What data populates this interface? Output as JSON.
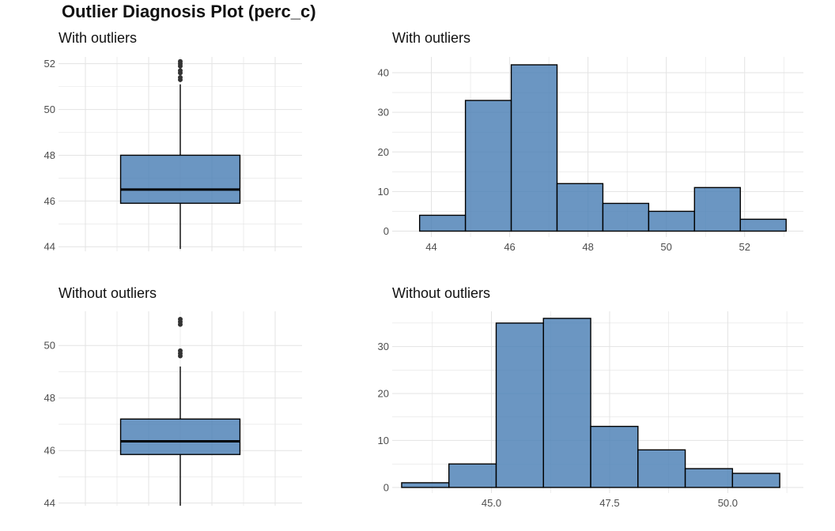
{
  "title": "Outlier Diagnosis Plot (perc_c)",
  "colors": {
    "fill": "#4a7fb5",
    "stroke": "#000000",
    "grid": "#e3e3e3"
  },
  "chart_data": [
    {
      "id": "box-with",
      "type": "box",
      "title": "With outliers",
      "ylim": [
        43.8,
        52.3
      ],
      "y_ticks": [
        44,
        46,
        48,
        50,
        52
      ],
      "y_tick_labels": [
        "44",
        "46",
        "48",
        "50",
        "52"
      ],
      "box": {
        "q1": 45.9,
        "median": 46.5,
        "q3": 48.0,
        "whisker_low": 43.9,
        "whisker_high": 51.1
      },
      "outliers": [
        51.3,
        51.4,
        51.6,
        51.7,
        51.9,
        52.0,
        52.1
      ],
      "grid": true
    },
    {
      "id": "hist-with",
      "type": "bar",
      "title": "With outliers",
      "xlim": [
        43.0,
        53.5
      ],
      "ylim": [
        -1.5,
        44
      ],
      "x_ticks": [
        44,
        46,
        48,
        50,
        52
      ],
      "x_tick_labels": [
        "44",
        "46",
        "48",
        "50",
        "52"
      ],
      "y_ticks": [
        0,
        10,
        20,
        30,
        40
      ],
      "y_tick_labels": [
        "0",
        "10",
        "20",
        "30",
        "40"
      ],
      "bin_edges": [
        43.7,
        44.87,
        46.04,
        47.21,
        48.38,
        49.55,
        50.72,
        51.89,
        53.06
      ],
      "counts": [
        4,
        33,
        42,
        12,
        7,
        5,
        11,
        3
      ],
      "grid": true
    },
    {
      "id": "box-without",
      "type": "box",
      "title": "Without outliers",
      "ylim": [
        43.9,
        51.3
      ],
      "y_ticks": [
        44,
        46,
        48,
        50
      ],
      "y_tick_labels": [
        "44",
        "46",
        "48",
        "50"
      ],
      "box": {
        "q1": 45.85,
        "median": 46.35,
        "q3": 47.2,
        "whisker_low": 43.9,
        "whisker_high": 49.2
      },
      "outliers": [
        49.6,
        49.7,
        49.8,
        50.8,
        50.9,
        51.0
      ],
      "grid": true
    },
    {
      "id": "hist-without",
      "type": "bar",
      "title": "Without outliers",
      "xlim": [
        42.9,
        51.6
      ],
      "ylim": [
        -1.2,
        37.5
      ],
      "x_ticks": [
        45,
        47.5,
        50
      ],
      "x_tick_labels": [
        "45.0",
        "47.5",
        "50.0"
      ],
      "y_ticks": [
        0,
        10,
        20,
        30
      ],
      "y_tick_labels": [
        "0",
        "10",
        "20",
        "30"
      ],
      "bin_edges": [
        43.1,
        44.1,
        45.1,
        46.1,
        47.1,
        48.1,
        49.1,
        50.1,
        51.1
      ],
      "counts": [
        1,
        5,
        35,
        36,
        13,
        8,
        4,
        3
      ],
      "grid": true
    }
  ]
}
